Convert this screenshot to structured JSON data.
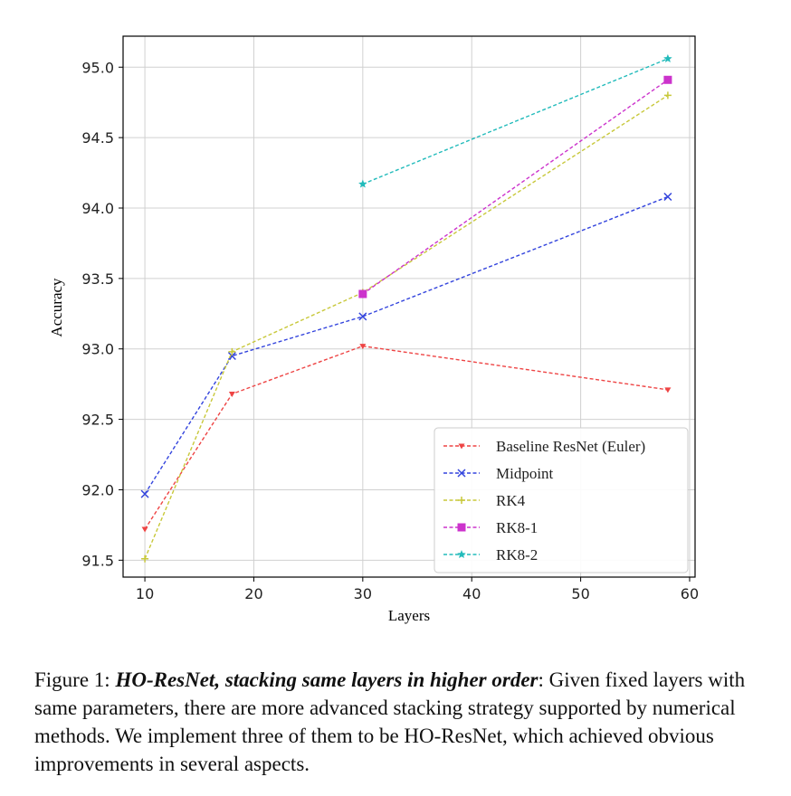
{
  "chart_data": {
    "type": "line",
    "xlabel": "Layers",
    "ylabel": "Accuracy",
    "xlim": [
      8,
      60.5
    ],
    "ylim": [
      91.38,
      95.22
    ],
    "xticks": [
      10,
      20,
      30,
      40,
      50,
      60
    ],
    "yticks": [
      91.5,
      92.0,
      92.5,
      93.0,
      93.5,
      94.0,
      94.5,
      95.0
    ],
    "xtick_labels": [
      "10",
      "20",
      "30",
      "40",
      "50",
      "60"
    ],
    "ytick_labels": [
      "91.5",
      "92.0",
      "92.5",
      "93.0",
      "93.5",
      "94.0",
      "94.5",
      "95.0"
    ],
    "grid": true,
    "legend_position": "lower-right",
    "series": [
      {
        "name": "Baseline ResNet (Euler)",
        "color": "#ee4444",
        "marker": "tri-down",
        "x": [
          10,
          18,
          30,
          58
        ],
        "y": [
          91.72,
          92.68,
          93.02,
          92.71
        ]
      },
      {
        "name": "Midpoint",
        "color": "#3344dd",
        "marker": "x",
        "x": [
          10,
          18,
          30,
          58
        ],
        "y": [
          91.97,
          92.95,
          93.23,
          94.08
        ]
      },
      {
        "name": "RK4",
        "color": "#c8c83a",
        "marker": "plus",
        "x": [
          10,
          18,
          30,
          58
        ],
        "y": [
          91.51,
          92.98,
          93.4,
          94.8
        ]
      },
      {
        "name": "RK8-1",
        "color": "#cc33cc",
        "marker": "square",
        "x": [
          30,
          58
        ],
        "y": [
          93.39,
          94.91
        ]
      },
      {
        "name": "RK8-2",
        "color": "#22bbbb",
        "marker": "star",
        "x": [
          30,
          58
        ],
        "y": [
          94.17,
          95.06
        ]
      }
    ]
  },
  "caption": {
    "label": "Figure 1: ",
    "title": "HO-ResNet, stacking same layers in higher order",
    "body": ": Given fixed layers with same parameters, there are more advanced stacking strategy supported by numerical methods. We implement three of them to be HO-ResNet, which achieved obvious improvements in several aspects."
  }
}
